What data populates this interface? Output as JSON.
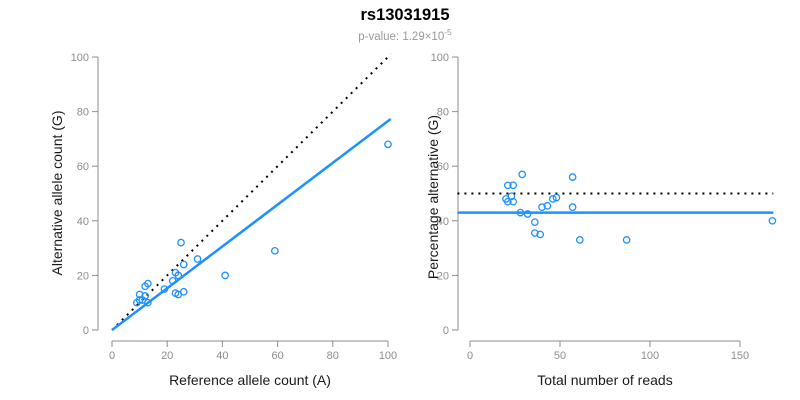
{
  "figure": {
    "title": "rs13031915",
    "subtitle_prefix": "p-value: 1.29×10",
    "subtitle_exponent": "-5"
  },
  "colors": {
    "accent_blue": "#1E90FF",
    "dotted_black": "#000000",
    "axis_gray": "#8C8C8C",
    "label_black": "#1A1A1A",
    "subtitle_gray": "#9A9A9A"
  },
  "chart_data": [
    {
      "type": "scatter",
      "name": "allele-counts-scatter",
      "xlabel": "Reference allele count (A)",
      "ylabel": "Alternative allele count (G)",
      "xlim": [
        0,
        100
      ],
      "ylim": [
        0,
        100
      ],
      "xticks": [
        0,
        20,
        40,
        60,
        80,
        100
      ],
      "yticks": [
        0,
        20,
        40,
        60,
        80,
        100
      ],
      "grid": false,
      "legend": null,
      "points": [
        [
          9,
          10
        ],
        [
          10,
          11
        ],
        [
          10,
          13
        ],
        [
          11,
          11
        ],
        [
          12,
          12.5
        ],
        [
          13,
          10
        ],
        [
          12,
          16
        ],
        [
          13,
          17
        ],
        [
          19,
          15
        ],
        [
          22,
          18
        ],
        [
          23,
          21
        ],
        [
          24,
          20
        ],
        [
          23,
          13.5
        ],
        [
          24,
          13
        ],
        [
          26,
          14
        ],
        [
          25,
          32
        ],
        [
          26,
          24
        ],
        [
          31,
          26
        ],
        [
          41,
          20
        ],
        [
          59,
          29
        ],
        [
          100,
          68
        ]
      ],
      "lines": [
        {
          "name": "identity-line",
          "style": "dotted",
          "color": "#000000",
          "from": [
            0,
            0
          ],
          "to": [
            101,
            101
          ]
        },
        {
          "name": "regression-line",
          "style": "solid",
          "color": "#1E90FF",
          "from": [
            0,
            0
          ],
          "to": [
            101,
            77.3
          ]
        }
      ]
    },
    {
      "type": "scatter",
      "name": "percentage-vs-reads-scatter",
      "xlabel": "Total number of reads",
      "ylabel": "Percentage alternative (G)",
      "xlim": [
        0,
        150
      ],
      "ylim": [
        0,
        100
      ],
      "xticks": [
        0,
        50,
        100,
        150
      ],
      "yticks": [
        0,
        20,
        40,
        60,
        80,
        100
      ],
      "grid": false,
      "legend": null,
      "points": [
        [
          29,
          57
        ],
        [
          57,
          56
        ],
        [
          21,
          53
        ],
        [
          24,
          53
        ],
        [
          20,
          48
        ],
        [
          23,
          49
        ],
        [
          21,
          47
        ],
        [
          24,
          47
        ],
        [
          28,
          43
        ],
        [
          32,
          42.5
        ],
        [
          40,
          45
        ],
        [
          43,
          45.5
        ],
        [
          46,
          48
        ],
        [
          48,
          48.5
        ],
        [
          57,
          45
        ],
        [
          36,
          39.5
        ],
        [
          36,
          35.5
        ],
        [
          39,
          35
        ],
        [
          61,
          33
        ],
        [
          87,
          33
        ],
        [
          168,
          40
        ]
      ],
      "lines": [
        {
          "name": "expected-50pct-line",
          "style": "dotted",
          "color": "#000000",
          "from": [
            -7,
            50
          ],
          "to": [
            168.5,
            50
          ]
        },
        {
          "name": "mean-percentage-line",
          "style": "solid",
          "color": "#1E90FF",
          "from": [
            -7,
            43
          ],
          "to": [
            168.5,
            43
          ]
        }
      ]
    }
  ]
}
